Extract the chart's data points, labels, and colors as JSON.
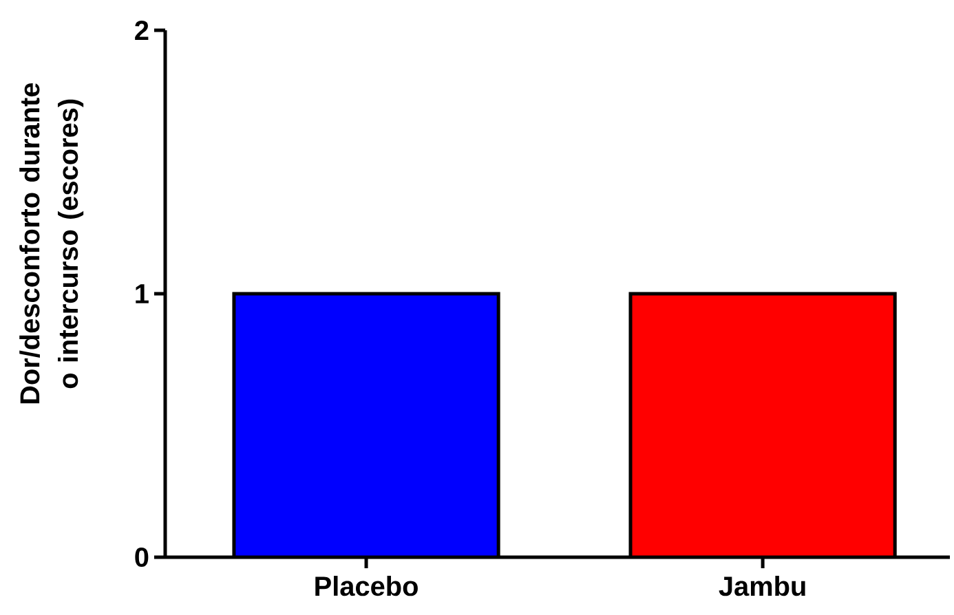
{
  "chart_data": {
    "type": "bar",
    "ylabel": "Dor/desconforto durante o intercurso (escores)",
    "categories": [
      "Placebo",
      "Jambu"
    ],
    "values": [
      1,
      1
    ],
    "colors": [
      "#0000ff",
      "#ff0000"
    ],
    "ylim": [
      0,
      2
    ],
    "yticks": [
      0,
      1,
      2
    ]
  }
}
